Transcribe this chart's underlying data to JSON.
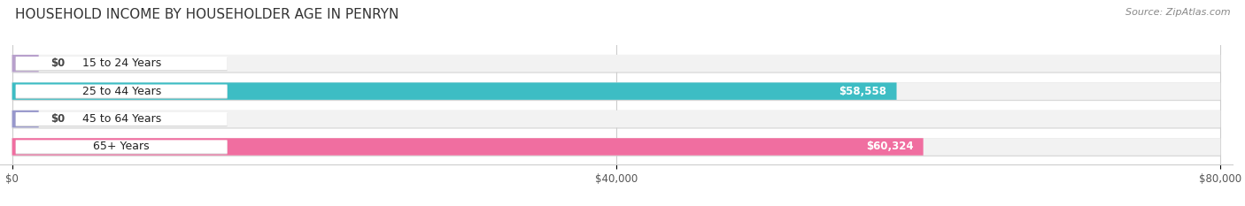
{
  "title": "HOUSEHOLD INCOME BY HOUSEHOLDER AGE IN PENRYN",
  "source": "Source: ZipAtlas.com",
  "categories": [
    "15 to 24 Years",
    "25 to 44 Years",
    "45 to 64 Years",
    "65+ Years"
  ],
  "values": [
    0,
    58558,
    0,
    60324
  ],
  "value_labels": [
    "$0",
    "$58,558",
    "$0",
    "$60,324"
  ],
  "bar_colors": [
    "#b8a0cc",
    "#3dbdc4",
    "#9898cc",
    "#f06ea0"
  ],
  "bar_bg_color": "#efefef",
  "xlim_max": 80000,
  "xtick_labels": [
    "$0",
    "$40,000",
    "$80,000"
  ],
  "title_fontsize": 11,
  "source_fontsize": 8,
  "label_fontsize": 9,
  "value_fontsize": 8.5,
  "background_color": "#ffffff"
}
